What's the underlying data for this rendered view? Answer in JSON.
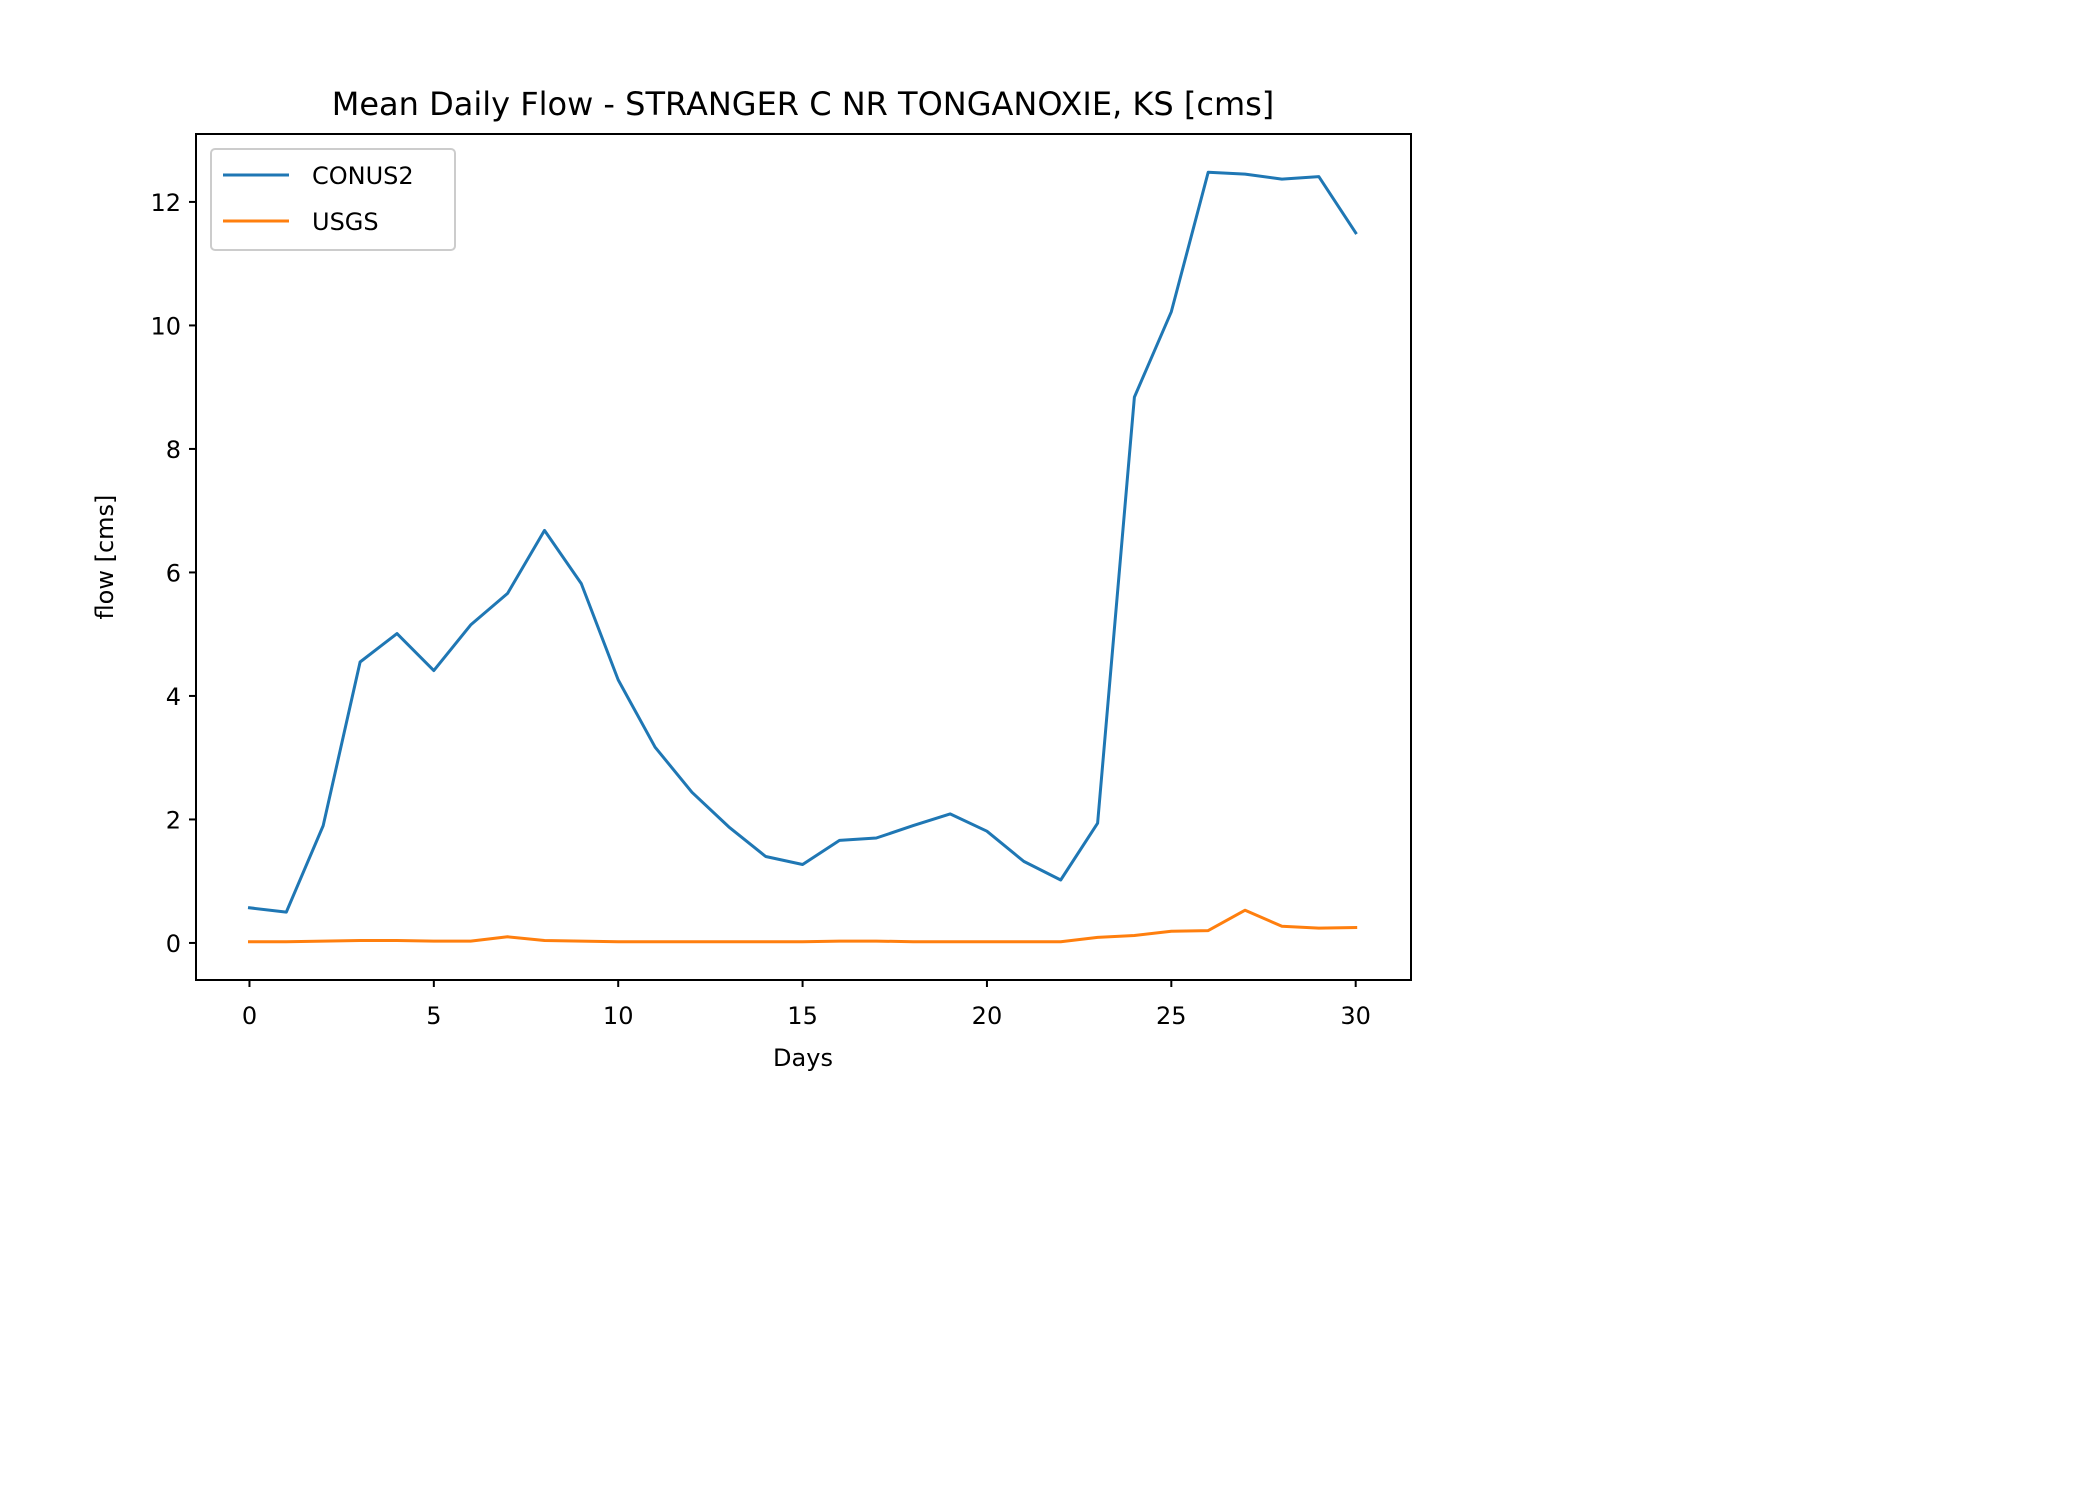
{
  "chart_data": {
    "type": "line",
    "title": "Mean Daily Flow - STRANGER C NR TONGANOXIE, KS [cms]",
    "xlabel": "Days",
    "ylabel": "flow [cms]",
    "xlim": [
      -1.45,
      31.5
    ],
    "ylim": [
      -0.6,
      13.1
    ],
    "x_ticks": [
      0,
      5,
      10,
      15,
      20,
      25,
      30
    ],
    "y_ticks": [
      0,
      2,
      4,
      6,
      8,
      10,
      12
    ],
    "grid": false,
    "legend_position": "upper-left",
    "x": [
      0,
      1,
      2,
      3,
      4,
      5,
      6,
      7,
      8,
      9,
      10,
      11,
      12,
      13,
      14,
      15,
      16,
      17,
      18,
      19,
      20,
      21,
      22,
      23,
      24,
      25,
      26,
      27,
      28,
      29,
      30
    ],
    "series": [
      {
        "name": "CONUS2",
        "color": "#1f77b4",
        "values": [
          0.57,
          0.5,
          1.9,
          4.55,
          5.01,
          4.41,
          5.15,
          5.66,
          6.68,
          5.82,
          4.26,
          3.17,
          2.44,
          1.88,
          1.4,
          1.27,
          1.66,
          1.7,
          1.9,
          2.09,
          1.81,
          1.32,
          1.02,
          1.94,
          8.84,
          10.22,
          12.48,
          12.45,
          12.37,
          12.41,
          11.5
        ]
      },
      {
        "name": "USGS",
        "color": "#ff7f0e",
        "values": [
          0.02,
          0.02,
          0.03,
          0.04,
          0.04,
          0.03,
          0.03,
          0.1,
          0.04,
          0.03,
          0.02,
          0.02,
          0.02,
          0.02,
          0.02,
          0.02,
          0.03,
          0.03,
          0.02,
          0.02,
          0.02,
          0.02,
          0.02,
          0.09,
          0.12,
          0.19,
          0.2,
          0.53,
          0.27,
          0.24,
          0.25
        ]
      }
    ]
  }
}
